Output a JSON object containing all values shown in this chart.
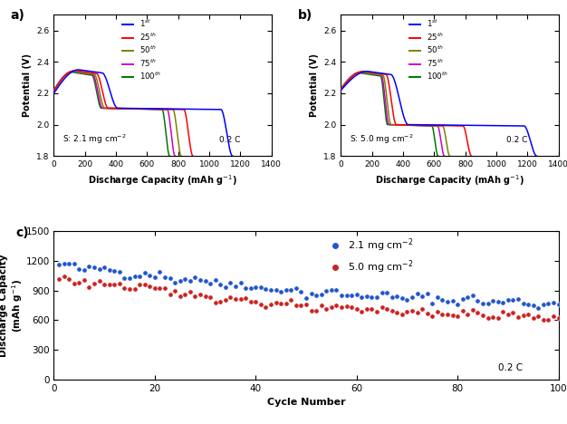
{
  "panel_a_label": "a)",
  "panel_b_label": "b)",
  "panel_c_label": "c)",
  "cycle_colors": [
    "#0000FF",
    "#FF0000",
    "#808000",
    "#CC00CC",
    "#007700"
  ],
  "cycle_labels": [
    "1$^{st}$",
    "25$^{th}$",
    "50$^{th}$",
    "75$^{th}$",
    "100$^{th}$"
  ],
  "xlabel_ab": "Discharge Capacity (mAh g$^{-1}$)",
  "ylabel_ab": "Potential (V)",
  "xlabel_c": "Cycle Number",
  "ylabel_c": "Discharge Capacity\n(mAh g$^{-1}$)",
  "xlim_ab": [
    0,
    1400
  ],
  "ylim_ab": [
    1.8,
    2.7
  ],
  "xticks_ab": [
    0,
    200,
    400,
    600,
    800,
    1000,
    1200,
    1400
  ],
  "yticks_ab": [
    1.8,
    2.0,
    2.2,
    2.4,
    2.6
  ],
  "annotation_a": "S: 2.1 mg cm$^{-2}$",
  "annotation_b": "S: 5.0 mg cm$^{-2}$",
  "annotation_c": "0.2 C",
  "annotation_ab": "0.2 C",
  "xlim_c": [
    0,
    100
  ],
  "ylim_c": [
    0,
    1500
  ],
  "xticks_c": [
    0,
    20,
    40,
    60,
    80,
    100
  ],
  "yticks_c": [
    0,
    300,
    600,
    900,
    1200,
    1500
  ],
  "legend_c_blue": "2.1 mg cm$^{-2}$",
  "legend_c_red": "5.0 mg cm$^{-2}$",
  "blue_color": "#2255CC",
  "red_color": "#CC2222",
  "panel_a_curves": [
    {
      "cap": 1150,
      "p1_cap": 160,
      "p1_v": 2.35,
      "trans_cap": 310,
      "p2_v": 2.105,
      "start_v": 2.2
    },
    {
      "cap": 895,
      "p1_cap": 135,
      "p1_v": 2.345,
      "trans_cap": 275,
      "p2_v": 2.105,
      "start_v": 2.215
    },
    {
      "cap": 820,
      "p1_cap": 125,
      "p1_v": 2.34,
      "trans_cap": 260,
      "p2_v": 2.105,
      "start_v": 2.22
    },
    {
      "cap": 780,
      "p1_cap": 120,
      "p1_v": 2.34,
      "trans_cap": 250,
      "p2_v": 2.105,
      "start_v": 2.22
    },
    {
      "cap": 745,
      "p1_cap": 115,
      "p1_v": 2.335,
      "trans_cap": 245,
      "p2_v": 2.105,
      "start_v": 2.22
    }
  ],
  "panel_b_curves": [
    {
      "cap": 1260,
      "p1_cap": 170,
      "p1_v": 2.34,
      "trans_cap": 320,
      "p2_v": 2.0,
      "start_v": 2.22
    },
    {
      "cap": 840,
      "p1_cap": 145,
      "p1_v": 2.34,
      "trans_cap": 290,
      "p2_v": 2.0,
      "start_v": 2.225
    },
    {
      "cap": 700,
      "p1_cap": 130,
      "p1_v": 2.335,
      "trans_cap": 270,
      "p2_v": 2.0,
      "start_v": 2.23
    },
    {
      "cap": 665,
      "p1_cap": 125,
      "p1_v": 2.335,
      "trans_cap": 260,
      "p2_v": 2.0,
      "start_v": 2.23
    },
    {
      "cap": 625,
      "p1_cap": 120,
      "p1_v": 2.33,
      "trans_cap": 255,
      "p2_v": 2.0,
      "start_v": 2.23
    }
  ]
}
